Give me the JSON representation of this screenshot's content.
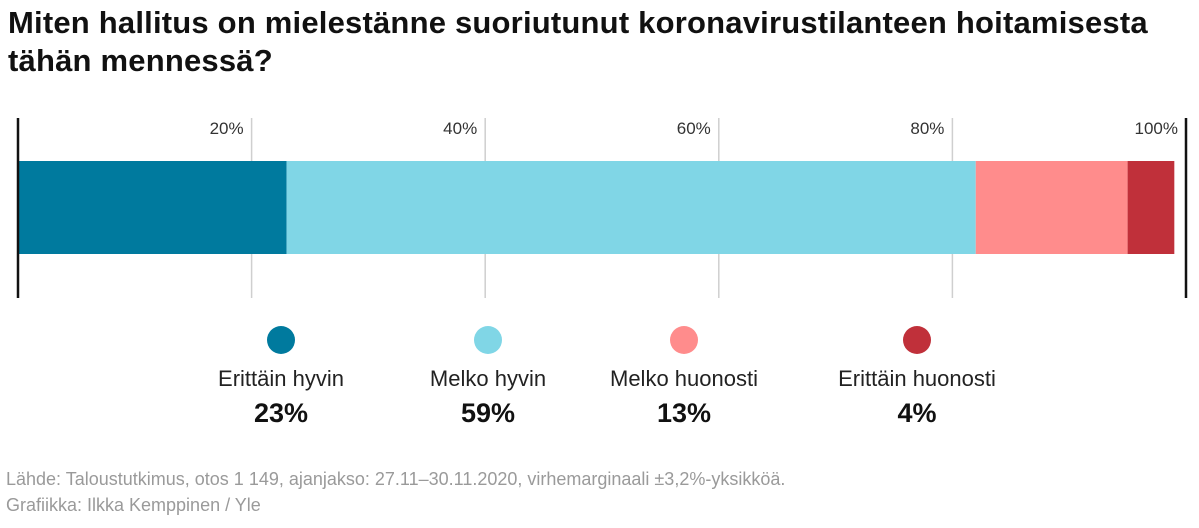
{
  "title": "Miten hallitus on mielestänne suoriutunut koronavirustilanteen hoitamisesta tähän mennessä?",
  "source": {
    "line1": "Lähde: Taloustutkimus, otos 1 149, ajanjakso: 27.11–30.11.2020, virhemarginaali ±3,2%-yksikköä.",
    "line2": "Grafiikka: Ilkka Kemppinen / Yle"
  },
  "chart_data": {
    "type": "bar",
    "orientation": "horizontal-stacked-100",
    "title": "Miten hallitus on mielestänne suoriutunut koronavirustilanteen hoitamisesta tähän mennessä?",
    "xlim": [
      0,
      100
    ],
    "ticks": [
      20,
      40,
      60,
      80,
      100
    ],
    "tick_labels": [
      "20%",
      "40%",
      "60%",
      "80%",
      "100%"
    ],
    "grid": true,
    "legend_placement": "bottom",
    "series": [
      {
        "name": "Erittäin hyvin",
        "value": 23,
        "label": "23%",
        "color": "#007a9e"
      },
      {
        "name": "Melko hyvin",
        "value": 59,
        "label": "59%",
        "color": "#80d6e6"
      },
      {
        "name": "Melko huonosti",
        "value": 13,
        "label": "13%",
        "color": "#ff8c8c"
      },
      {
        "name": "Erittäin huonosti",
        "value": 4,
        "label": "4%",
        "color": "#c0303a"
      }
    ]
  }
}
